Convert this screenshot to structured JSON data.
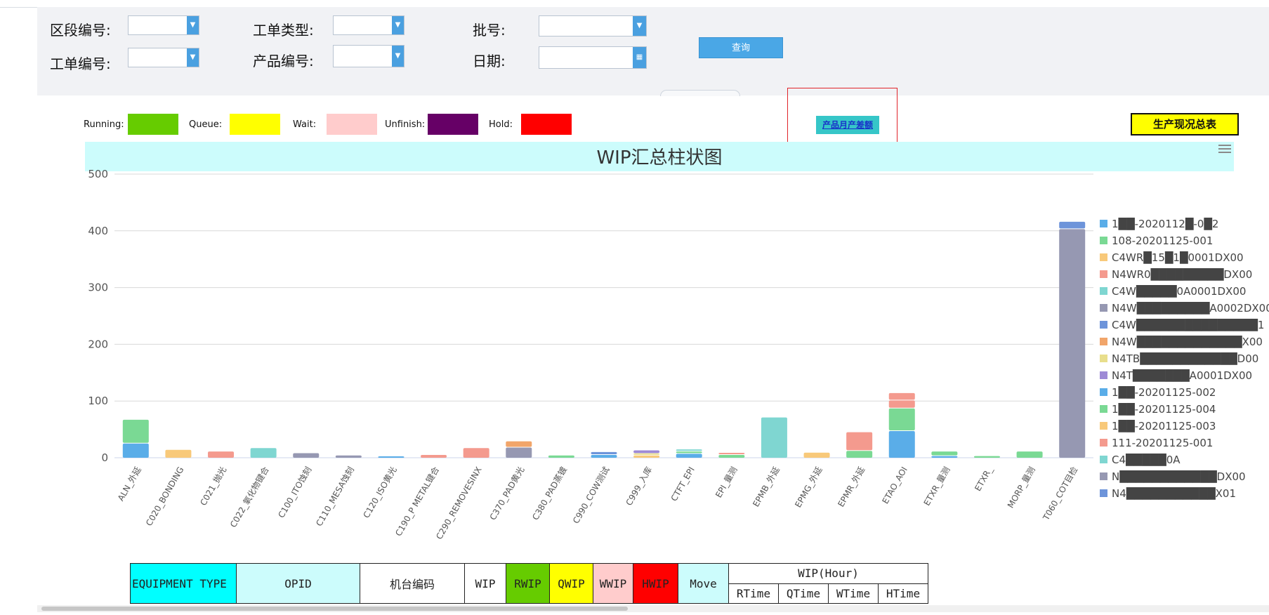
{
  "filters": {
    "section_no_label": "区段编号:",
    "workorder_type_label": "工单类型:",
    "batch_no_label": "批号:",
    "workorder_no_label": "工单编号:",
    "product_no_label": "产品编号:",
    "date_label": "日期:",
    "query_label": "查询"
  },
  "legend": [
    {
      "label": "Running:",
      "color": "#66cc00"
    },
    {
      "label": "Queue:",
      "color": "#ffff00"
    },
    {
      "label": "Wait:",
      "color": "#ffcccc"
    },
    {
      "label": "Unfinish:",
      "color": "#660066"
    },
    {
      "label": "Hold:",
      "color": "#ff0000"
    }
  ],
  "links": {
    "product_monthly_diff": "产品月产差额",
    "production_summary": "生产现况总表"
  },
  "chart_data": {
    "type": "bar",
    "stacked": true,
    "title": "WIP汇总柱状图",
    "ylim": [
      0,
      500
    ],
    "yticks": [
      0,
      100,
      200,
      300,
      400,
      500
    ],
    "categories": [
      "ALN_外延",
      "C020_BONDING",
      "C021_抛光",
      "C022_氧化物键合",
      "C100_ITO蚀刻",
      "C110_MESA蚀刻",
      "C120_ISO黄光",
      "C190_P METAL键合",
      "C290_REMOVESINX",
      "C370_PAD黄光",
      "C380_PAD蒸镀",
      "C990_COW测试",
      "C999_入库",
      "CTFT_EPI",
      "EPI_量测",
      "EPMB_外延",
      "EPMG_外延",
      "EPMR_外延",
      "ETAO_AOI",
      "ETXR_量测",
      "ETXR_",
      "MORP_量测",
      "T060_COT目检"
    ],
    "legend_position": "right",
    "series": [
      {
        "name": "1██-2020112█-0█2",
        "color": "#5aade8",
        "values": [
          25,
          0,
          0,
          0,
          0,
          0,
          2,
          0,
          0,
          0,
          0,
          5,
          0,
          7,
          0,
          0,
          0,
          0,
          47,
          3,
          0,
          0,
          0
        ]
      },
      {
        "name": "108-20201125-001",
        "color": "#7ad994",
        "values": [
          42,
          0,
          0,
          0,
          0,
          0,
          0,
          0,
          0,
          0,
          4,
          0,
          0,
          4,
          5,
          0,
          0,
          12,
          40,
          8,
          3,
          11,
          0
        ]
      },
      {
        "name": "C4WR█15█1█0001DX00",
        "color": "#f8c97a",
        "values": [
          0,
          14,
          0,
          0,
          0,
          0,
          0,
          0,
          0,
          0,
          0,
          0,
          4,
          0,
          0,
          0,
          9,
          0,
          0,
          0,
          0,
          0,
          0
        ]
      },
      {
        "name": "N4WR0█████████DX00",
        "color": "#f49a8e",
        "values": [
          0,
          0,
          11,
          0,
          0,
          0,
          0,
          5,
          17,
          0,
          0,
          0,
          0,
          0,
          3,
          0,
          0,
          33,
          14,
          0,
          0,
          0,
          0
        ]
      },
      {
        "name": "C4W█████0A0001DX00",
        "color": "#7fd6d1",
        "values": [
          0,
          0,
          0,
          17,
          0,
          0,
          0,
          0,
          0,
          0,
          0,
          0,
          0,
          2,
          0,
          71,
          0,
          0,
          0,
          0,
          0,
          0,
          0
        ]
      },
      {
        "name": "N4W█████████A0002DX00",
        "color": "#9698b2",
        "values": [
          0,
          0,
          0,
          0,
          8,
          4,
          0,
          0,
          0,
          18,
          0,
          0,
          0,
          0,
          0,
          0,
          0,
          0,
          0,
          0,
          0,
          0,
          403
        ]
      },
      {
        "name": "C4W███████████████1",
        "color": "#6d94da",
        "values": [
          0,
          0,
          0,
          0,
          0,
          0,
          0,
          0,
          0,
          0,
          0,
          5,
          0,
          0,
          0,
          0,
          0,
          0,
          0,
          0,
          0,
          0,
          13
        ]
      },
      {
        "name": "N4W█████████████X00",
        "color": "#f1a56a",
        "values": [
          0,
          0,
          0,
          0,
          0,
          0,
          0,
          0,
          0,
          11,
          0,
          0,
          0,
          0,
          0,
          0,
          0,
          0,
          0,
          0,
          0,
          0,
          0
        ]
      },
      {
        "name": "N4TB████████████D00",
        "color": "#e8de8c",
        "values": [
          0,
          0,
          0,
          0,
          0,
          0,
          0,
          0,
          0,
          0,
          0,
          0,
          3,
          0,
          0,
          0,
          0,
          0,
          0,
          0,
          0,
          0,
          0
        ]
      },
      {
        "name": "N4T███████A0001DX00",
        "color": "#9e8ad6",
        "values": [
          0,
          0,
          0,
          0,
          0,
          0,
          0,
          0,
          0,
          0,
          0,
          0,
          6,
          0,
          0,
          0,
          0,
          0,
          0,
          0,
          0,
          0,
          0
        ]
      },
      {
        "name": "1██-20201125-002",
        "color": "#5aade8",
        "values": [
          0,
          0,
          0,
          0,
          0,
          0,
          0,
          0,
          0,
          0,
          0,
          0,
          0,
          0,
          0,
          0,
          0,
          0,
          0,
          0,
          0,
          0,
          0
        ]
      },
      {
        "name": "1██-20201125-004",
        "color": "#7ad994",
        "values": [
          0,
          0,
          0,
          0,
          0,
          0,
          0,
          0,
          0,
          0,
          0,
          0,
          0,
          0,
          0,
          0,
          0,
          0,
          0,
          0,
          0,
          0,
          0
        ]
      },
      {
        "name": "1██-20201125-003",
        "color": "#f8c97a",
        "values": [
          0,
          0,
          0,
          0,
          0,
          0,
          0,
          0,
          0,
          0,
          0,
          0,
          0,
          0,
          0,
          0,
          0,
          0,
          0,
          0,
          0,
          0,
          0
        ]
      },
      {
        "name": "111-20201125-001",
        "color": "#f49a8e",
        "values": [
          0,
          0,
          0,
          0,
          0,
          0,
          0,
          0,
          0,
          0,
          0,
          0,
          0,
          0,
          0,
          0,
          0,
          0,
          13,
          0,
          0,
          0,
          0
        ]
      },
      {
        "name": "C4█████0A",
        "color": "#7fd6d1",
        "values": [
          0,
          0,
          0,
          0,
          0,
          0,
          0,
          0,
          0,
          0,
          0,
          0,
          0,
          0,
          0,
          0,
          0,
          0,
          0,
          0,
          0,
          0,
          0
        ]
      },
      {
        "name": "N████████████DX00",
        "color": "#9698b2",
        "values": [
          0,
          0,
          0,
          0,
          0,
          0,
          0,
          0,
          0,
          0,
          0,
          0,
          0,
          0,
          0,
          0,
          0,
          0,
          0,
          0,
          0,
          0,
          0
        ]
      },
      {
        "name": "N4███████████X01",
        "color": "#6d94da",
        "values": [
          0,
          0,
          0,
          0,
          0,
          0,
          0,
          0,
          0,
          0,
          0,
          0,
          0,
          0,
          0,
          0,
          0,
          0,
          0,
          0,
          0,
          0,
          0
        ]
      }
    ]
  },
  "table": {
    "equipment_type": "EQUIPMENT TYPE",
    "opid": "OPID",
    "machine_code": "机台编码",
    "wip": "WIP",
    "rwip": "RWIP",
    "qwip": "QWIP",
    "wwip": "WWIP",
    "hwip": "HWIP",
    "move": "Move",
    "wip_hour": "WIP(Hour)",
    "rtime": "RTime",
    "qtime": "QTime",
    "wtime": "WTime",
    "htime": "HTime"
  }
}
